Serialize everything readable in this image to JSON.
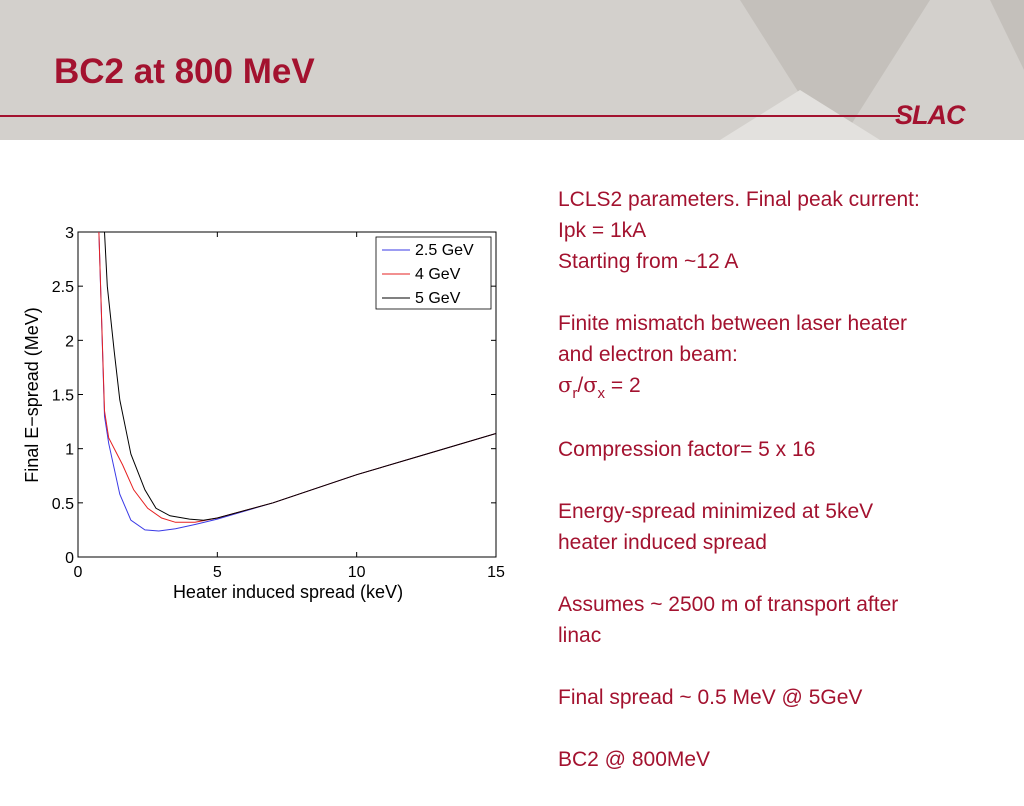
{
  "slide": {
    "title": "BC2 at 800 MeV",
    "logo": "SLAC"
  },
  "colors": {
    "accent": "#a3122f",
    "header_bg": "#d3d0cc",
    "series_2_5": "#3a3ae6",
    "series_4": "#e62020",
    "series_5": "#000000"
  },
  "notes": {
    "p1_line1": "LCLS2 parameters. Final peak current:",
    "p1_line2": "Ipk = 1kA",
    "p1_line3": "Starting from ~12 A",
    "p2_line1": "Finite mismatch between laser heater",
    "p2_line2": "and electron beam:",
    "p2_sigma1": "σ",
    "p2_sub1": "r",
    "p2_slash": "/",
    "p2_sigma2": "σ",
    "p2_sub2": "x",
    "p2_value": " = 2",
    "p3": "Compression factor= 5 x 16",
    "p4_line1": "Energy-spread minimized at 5keV",
    "p4_line2": "heater induced spread",
    "p5_line1": "Assumes ~ 2500 m of transport after",
    "p5_line2": "linac",
    "p6": "Final spread ~ 0.5 MeV @ 5GeV",
    "p7": "BC2 @ 800MeV"
  },
  "chart_data": {
    "type": "line",
    "title": "",
    "xlabel": "Heater induced spread (keV)",
    "ylabel": "Final E−spread (MeV)",
    "xlim": [
      0,
      15
    ],
    "ylim": [
      0,
      3
    ],
    "xticks": [
      "0",
      "5",
      "10",
      "15"
    ],
    "yticks": [
      "0",
      "0.5",
      "1",
      "1.5",
      "2",
      "2.5",
      "3"
    ],
    "legend_position": "top-right",
    "grid": false,
    "series": [
      {
        "name": "2.5 GeV",
        "color": "#3a3ae6",
        "x": [
          0.75,
          0.95,
          1.1,
          1.5,
          1.9,
          2.4,
          2.9,
          3.5,
          4.2,
          5.0,
          7.0,
          10.0,
          12.5,
          15.0
        ],
        "y": [
          3.0,
          1.3,
          1.05,
          0.58,
          0.34,
          0.25,
          0.24,
          0.26,
          0.3,
          0.35,
          0.5,
          0.76,
          0.95,
          1.14
        ]
      },
      {
        "name": "4 GeV",
        "color": "#e62020",
        "x": [
          0.75,
          0.95,
          1.1,
          1.6,
          2.0,
          2.5,
          3.0,
          3.5,
          4.2,
          5.0,
          7.0,
          10.0,
          12.5,
          15.0
        ],
        "y": [
          3.0,
          1.35,
          1.1,
          0.85,
          0.62,
          0.45,
          0.36,
          0.32,
          0.32,
          0.36,
          0.5,
          0.76,
          0.95,
          1.14
        ]
      },
      {
        "name": "5 GeV",
        "color": "#000000",
        "x": [
          0.95,
          1.05,
          1.3,
          1.5,
          1.9,
          2.4,
          2.8,
          3.3,
          4.0,
          4.5,
          5.0,
          7.0,
          10.0,
          12.5,
          15.0
        ],
        "y": [
          3.0,
          2.5,
          1.9,
          1.45,
          0.95,
          0.62,
          0.45,
          0.38,
          0.35,
          0.34,
          0.36,
          0.5,
          0.76,
          0.95,
          1.14
        ]
      }
    ]
  }
}
